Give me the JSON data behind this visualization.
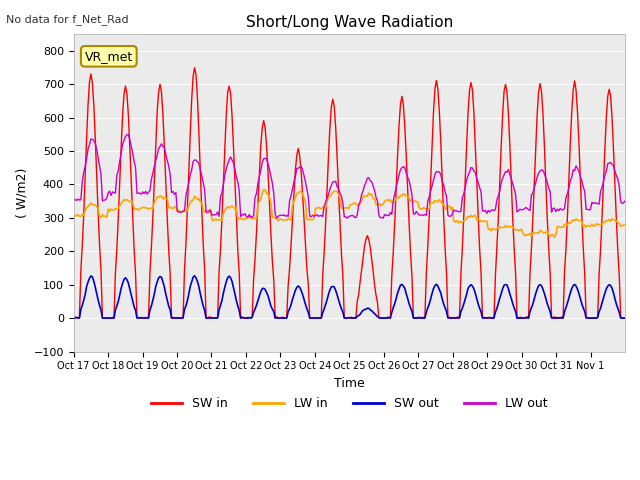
{
  "title": "Short/Long Wave Radiation",
  "xlabel": "Time",
  "ylabel": "( W/m2)",
  "ylim": [
    -100,
    850
  ],
  "yticks": [
    -100,
    0,
    100,
    200,
    300,
    400,
    500,
    600,
    700,
    800
  ],
  "note_text": "No data for f_Net_Rad",
  "label_box_text": "VR_met",
  "colors": {
    "SW_in": "#ff0000",
    "LW_in": "#ffa500",
    "SW_out": "#0000cc",
    "LW_out": "#cc00cc"
  },
  "legend_labels": [
    "SW in",
    "LW in",
    "SW out",
    "LW out"
  ],
  "x_tick_labels": [
    "Oct 17",
    "Oct 18",
    "Oct 19",
    "Oct 20",
    "Oct 21",
    "Oct 22",
    "Oct 23",
    "Oct 24",
    "Oct 25",
    "Oct 26",
    "Oct 27",
    "Oct 28",
    "Oct 29",
    "Oct 30",
    "Oct 31",
    "Nov 1"
  ],
  "n_days": 16,
  "sw_in_peaks": [
    730,
    695,
    700,
    750,
    695,
    590,
    505,
    655,
    245,
    660,
    710,
    705,
    700,
    700,
    705,
    685
  ],
  "lw_in_base": [
    305,
    325,
    330,
    320,
    295,
    300,
    295,
    330,
    340,
    350,
    330,
    290,
    265,
    250,
    275,
    280
  ],
  "lw_in_day_bump": [
    40,
    30,
    35,
    40,
    40,
    80,
    85,
    50,
    30,
    20,
    20,
    15,
    10,
    10,
    20,
    15
  ],
  "sw_out_peaks": [
    125,
    120,
    125,
    125,
    125,
    90,
    95,
    95,
    30,
    100,
    100,
    100,
    100,
    100,
    100,
    100
  ],
  "lw_out_night": [
    355,
    375,
    375,
    320,
    310,
    305,
    305,
    305,
    305,
    310,
    310,
    320,
    320,
    325,
    325,
    345
  ],
  "lw_out_day_extra": [
    185,
    175,
    145,
    155,
    170,
    175,
    150,
    100,
    110,
    145,
    130,
    130,
    120,
    120,
    125,
    120
  ]
}
